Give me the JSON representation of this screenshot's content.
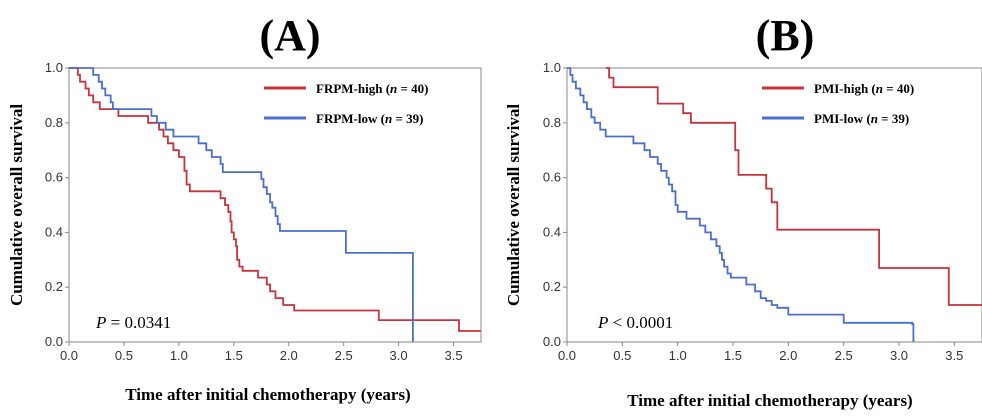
{
  "chart_data": [
    {
      "type": "line",
      "panel_label": "(A)",
      "ylabel": "Cumulative overall survival",
      "xlabel": "Time after initial chemotherapy (years)",
      "xlim": [
        0,
        3.75
      ],
      "ylim": [
        0,
        1.0
      ],
      "xticks": [
        "0.0",
        "0.5",
        "1.0",
        "1.5",
        "2.0",
        "2.5",
        "3.0",
        "3.5"
      ],
      "yticks": [
        "0.0",
        "0.2",
        "0.4",
        "0.6",
        "0.8",
        "1.0"
      ],
      "legend_position": "top-right",
      "p_value": {
        "prefix": "P",
        "text": " = 0.0341"
      },
      "series": [
        {
          "name": "FRPM-high",
          "n_label": "n",
          "n_text": " = 40)",
          "color": "#c8323c",
          "points": [
            [
              0,
              1.0
            ],
            [
              0.08,
              0.975
            ],
            [
              0.1,
              0.95
            ],
            [
              0.15,
              0.925
            ],
            [
              0.18,
              0.9
            ],
            [
              0.22,
              0.875
            ],
            [
              0.28,
              0.85
            ],
            [
              0.45,
              0.825
            ],
            [
              0.72,
              0.8
            ],
            [
              0.82,
              0.775
            ],
            [
              0.86,
              0.75
            ],
            [
              0.9,
              0.725
            ],
            [
              0.95,
              0.7
            ],
            [
              1.0,
              0.675
            ],
            [
              1.05,
              0.625
            ],
            [
              1.07,
              0.575
            ],
            [
              1.1,
              0.55
            ],
            [
              1.2,
              0.55
            ],
            [
              1.38,
              0.525
            ],
            [
              1.42,
              0.5
            ],
            [
              1.45,
              0.475
            ],
            [
              1.47,
              0.44
            ],
            [
              1.48,
              0.4
            ],
            [
              1.5,
              0.375
            ],
            [
              1.52,
              0.35
            ],
            [
              1.53,
              0.3
            ],
            [
              1.55,
              0.275
            ],
            [
              1.58,
              0.26
            ],
            [
              1.72,
              0.235
            ],
            [
              1.8,
              0.21
            ],
            [
              1.83,
              0.185
            ],
            [
              1.88,
              0.16
            ],
            [
              1.95,
              0.135
            ],
            [
              2.05,
              0.115
            ],
            [
              2.82,
              0.08
            ],
            [
              3.55,
              0.04
            ],
            [
              3.75,
              0.04
            ]
          ]
        },
        {
          "name": "FRPM-low",
          "n_label": "n",
          "n_text": " = 39)",
          "color": "#4a6fd0",
          "points": [
            [
              0,
              1.0
            ],
            [
              0.2,
              1.0
            ],
            [
              0.22,
              0.975
            ],
            [
              0.27,
              0.95
            ],
            [
              0.3,
              0.925
            ],
            [
              0.33,
              0.9
            ],
            [
              0.38,
              0.875
            ],
            [
              0.4,
              0.85
            ],
            [
              0.75,
              0.825
            ],
            [
              0.8,
              0.8
            ],
            [
              0.88,
              0.775
            ],
            [
              0.95,
              0.75
            ],
            [
              1.18,
              0.725
            ],
            [
              1.25,
              0.7
            ],
            [
              1.3,
              0.675
            ],
            [
              1.38,
              0.65
            ],
            [
              1.4,
              0.62
            ],
            [
              1.75,
              0.595
            ],
            [
              1.77,
              0.565
            ],
            [
              1.8,
              0.54
            ],
            [
              1.83,
              0.51
            ],
            [
              1.85,
              0.49
            ],
            [
              1.88,
              0.46
            ],
            [
              1.9,
              0.43
            ],
            [
              1.92,
              0.405
            ],
            [
              2.25,
              0.405
            ],
            [
              2.52,
              0.325
            ],
            [
              3.12,
              0.325
            ],
            [
              3.13,
              0.0
            ]
          ]
        }
      ]
    },
    {
      "type": "line",
      "panel_label": "(B)",
      "ylabel": "Cumulative overall survival",
      "xlabel": "Time after initial chemotherapy (years)",
      "xlim": [
        0,
        3.75
      ],
      "ylim": [
        0,
        1.0
      ],
      "xticks": [
        "0.0",
        "0.5",
        "1.0",
        "1.5",
        "2.0",
        "2.5",
        "3.0",
        "3.5"
      ],
      "yticks": [
        "0.0",
        "0.2",
        "0.4",
        "0.6",
        "0.8",
        "1.0"
      ],
      "legend_position": "top-right",
      "p_value": {
        "prefix": "P",
        "text": " < 0.0001"
      },
      "series": [
        {
          "name": "PMI-high",
          "n_label": "n",
          "n_text": " = 40)",
          "color": "#c8323c",
          "points": [
            [
              0.35,
              1.0
            ],
            [
              0.38,
              0.965
            ],
            [
              0.42,
              0.93
            ],
            [
              0.75,
              0.93
            ],
            [
              0.82,
              0.87
            ],
            [
              1.02,
              0.87
            ],
            [
              1.05,
              0.835
            ],
            [
              1.12,
              0.8
            ],
            [
              1.5,
              0.8
            ],
            [
              1.52,
              0.7
            ],
            [
              1.55,
              0.61
            ],
            [
              1.75,
              0.61
            ],
            [
              1.8,
              0.56
            ],
            [
              1.85,
              0.51
            ],
            [
              1.9,
              0.41
            ],
            [
              2.8,
              0.41
            ],
            [
              2.82,
              0.27
            ],
            [
              3.43,
              0.27
            ],
            [
              3.45,
              0.135
            ],
            [
              3.75,
              0.135
            ]
          ]
        },
        {
          "name": "PMI-low",
          "n_label": "n",
          "n_text": " = 39)",
          "color": "#4a6fd0",
          "points": [
            [
              0,
              1.0
            ],
            [
              0.03,
              0.975
            ],
            [
              0.05,
              0.95
            ],
            [
              0.08,
              0.925
            ],
            [
              0.12,
              0.9
            ],
            [
              0.15,
              0.875
            ],
            [
              0.18,
              0.85
            ],
            [
              0.22,
              0.82
            ],
            [
              0.25,
              0.8
            ],
            [
              0.3,
              0.775
            ],
            [
              0.35,
              0.75
            ],
            [
              0.55,
              0.75
            ],
            [
              0.6,
              0.725
            ],
            [
              0.7,
              0.7
            ],
            [
              0.75,
              0.675
            ],
            [
              0.82,
              0.65
            ],
            [
              0.85,
              0.625
            ],
            [
              0.9,
              0.6
            ],
            [
              0.92,
              0.575
            ],
            [
              0.95,
              0.55
            ],
            [
              0.98,
              0.5
            ],
            [
              1.0,
              0.475
            ],
            [
              1.08,
              0.45
            ],
            [
              1.15,
              0.45
            ],
            [
              1.2,
              0.425
            ],
            [
              1.25,
              0.4
            ],
            [
              1.3,
              0.375
            ],
            [
              1.35,
              0.35
            ],
            [
              1.38,
              0.325
            ],
            [
              1.4,
              0.3
            ],
            [
              1.42,
              0.275
            ],
            [
              1.45,
              0.25
            ],
            [
              1.48,
              0.235
            ],
            [
              1.62,
              0.21
            ],
            [
              1.7,
              0.185
            ],
            [
              1.75,
              0.16
            ],
            [
              1.8,
              0.15
            ],
            [
              1.85,
              0.135
            ],
            [
              1.9,
              0.125
            ],
            [
              2.0,
              0.1
            ],
            [
              2.5,
              0.07
            ],
            [
              3.12,
              0.065
            ],
            [
              3.13,
              0.0
            ]
          ]
        }
      ]
    }
  ]
}
